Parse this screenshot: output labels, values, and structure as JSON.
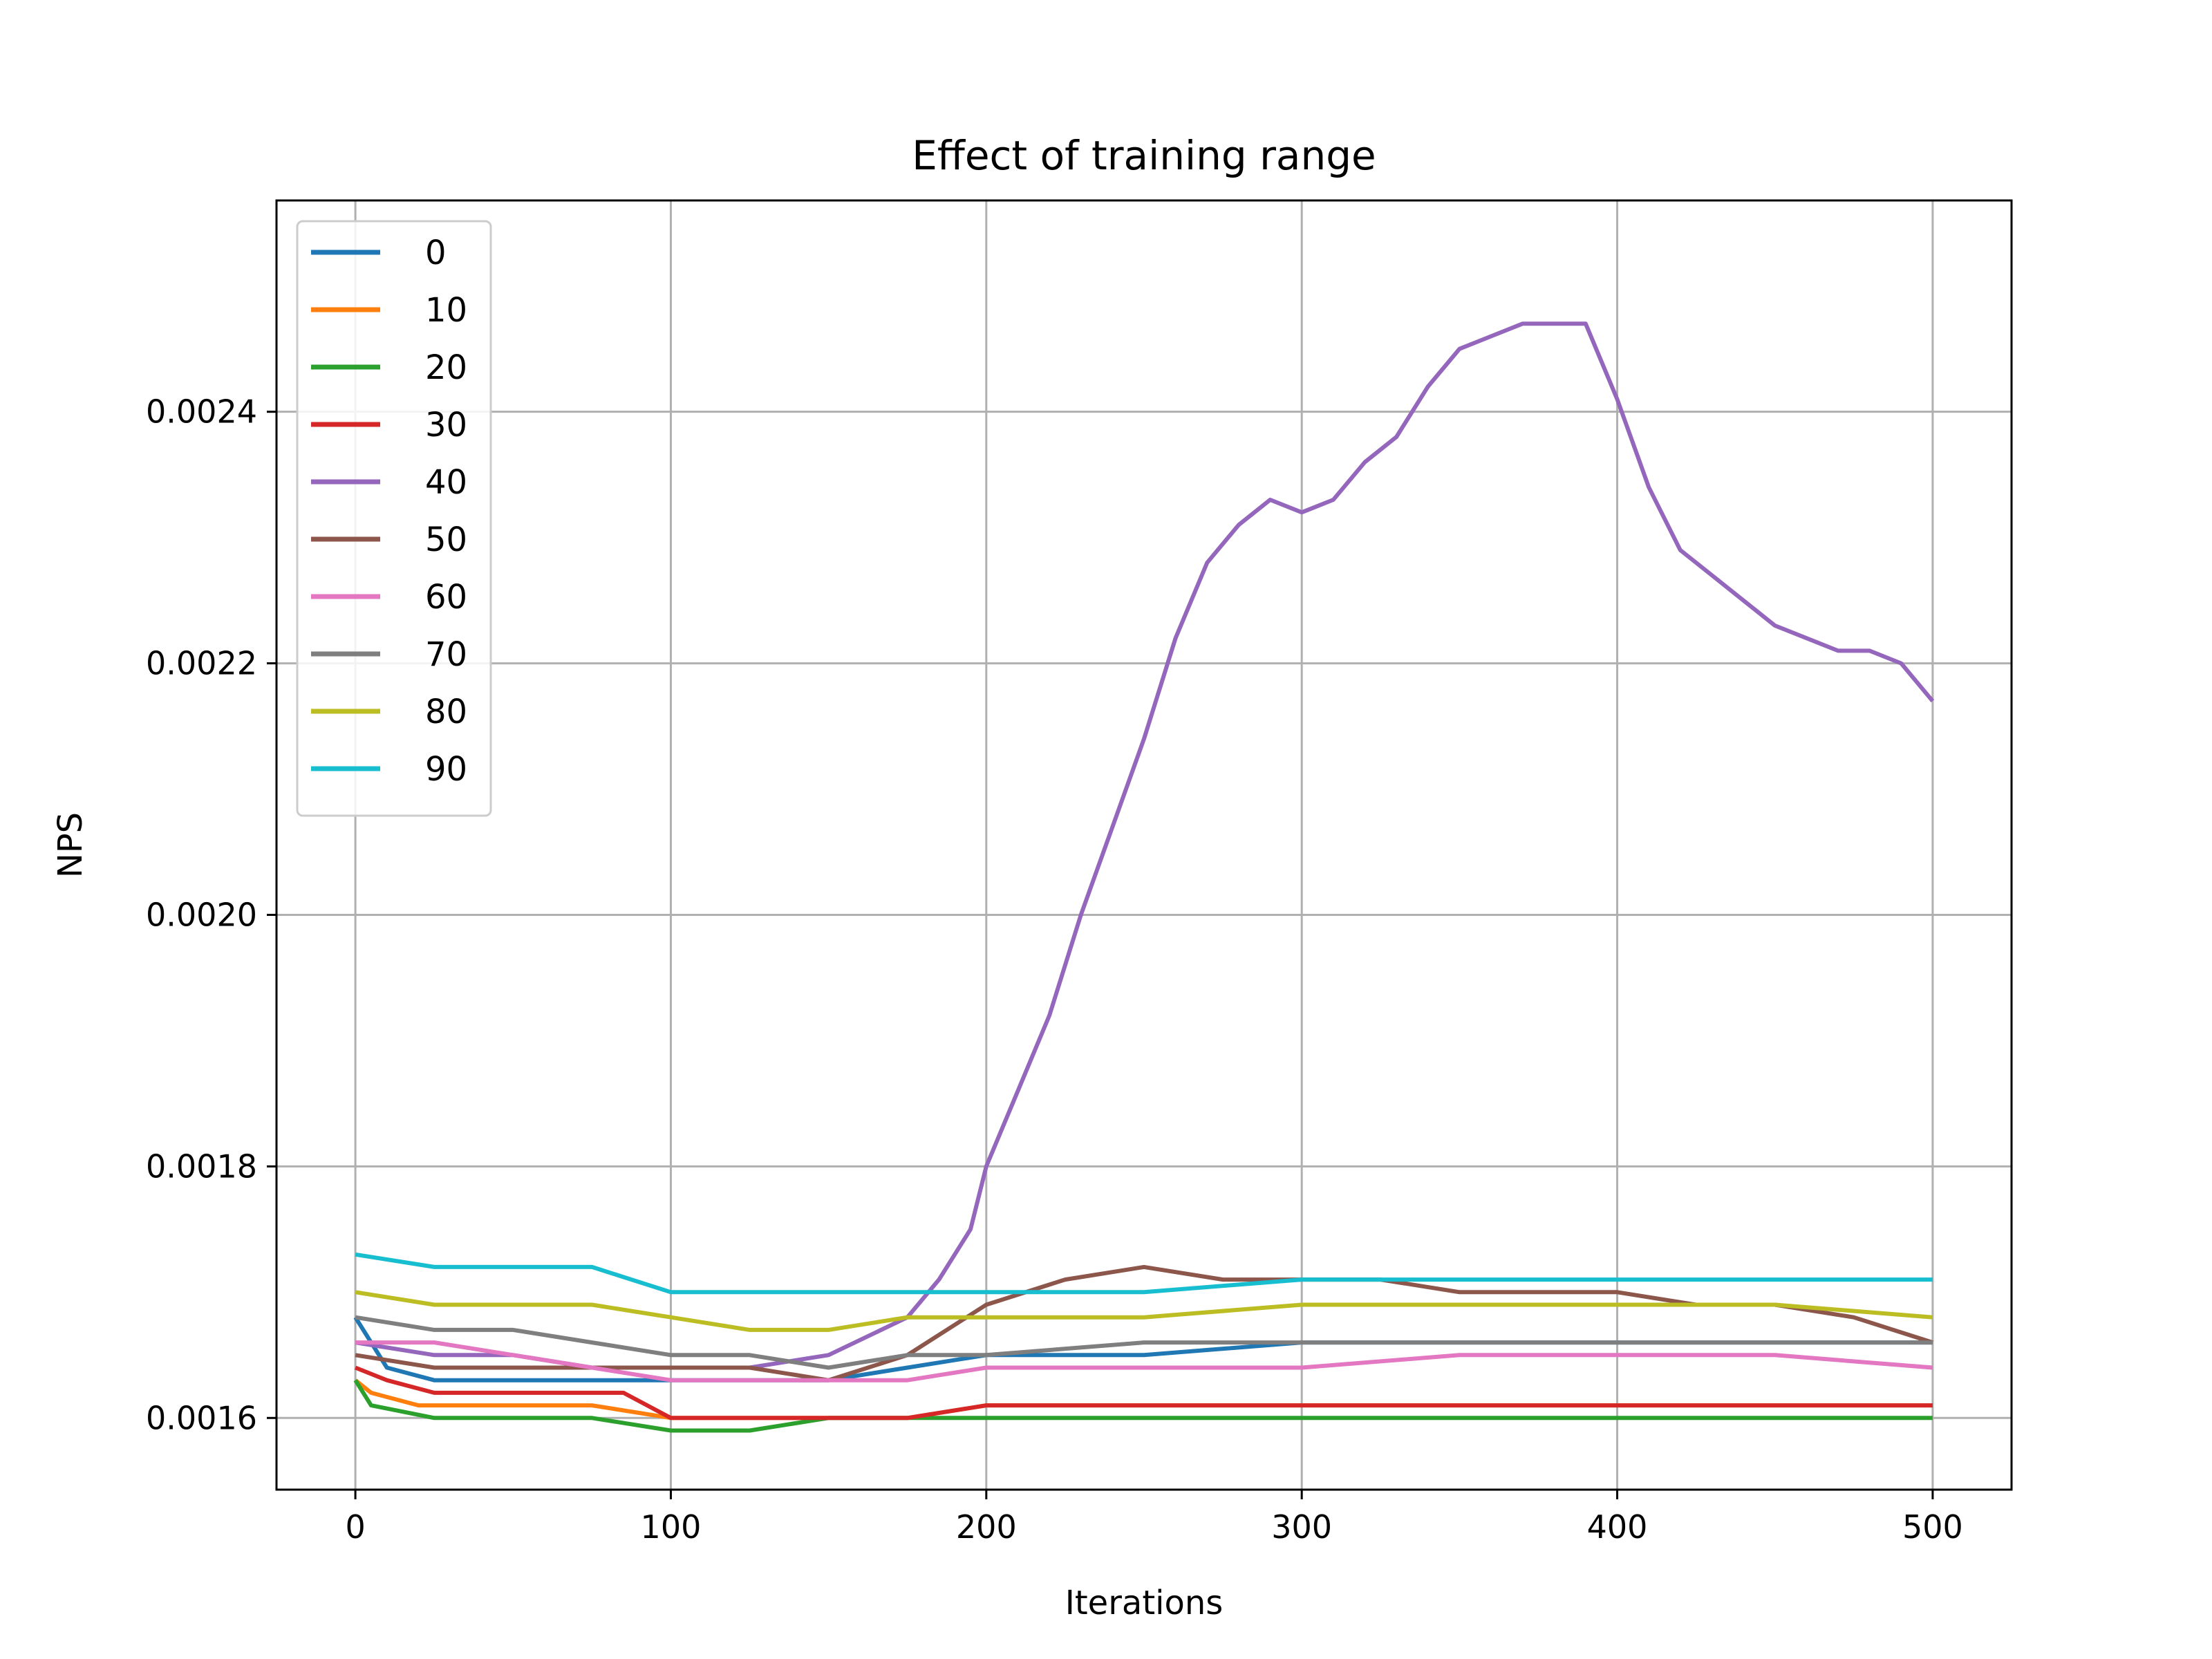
{
  "chart_data": {
    "type": "line",
    "title": "Effect of training range",
    "xlabel": "Iterations",
    "ylabel": "NPS",
    "xlim": [
      -25,
      525
    ],
    "ylim": [
      0.001543,
      0.002568
    ],
    "x_ticks": [
      0,
      100,
      200,
      300,
      400,
      500
    ],
    "x_tick_labels": [
      "0",
      "100",
      "200",
      "300",
      "400",
      "500"
    ],
    "y_ticks": [
      0.0016,
      0.0018,
      0.002,
      0.0022,
      0.0024
    ],
    "y_tick_labels": [
      "0.0016",
      "0.0018",
      "0.0020",
      "0.0022",
      "0.0024"
    ],
    "grid": true,
    "legend_position": "upper-left",
    "series": [
      {
        "name": "0",
        "color": "#1f77b4",
        "x": [
          0,
          10,
          25,
          50,
          75,
          100,
          125,
          150,
          175,
          200,
          250,
          300,
          350,
          400,
          450,
          500
        ],
        "y": [
          0.00168,
          0.00164,
          0.00163,
          0.00163,
          0.00163,
          0.00163,
          0.00163,
          0.00163,
          0.00164,
          0.00165,
          0.00165,
          0.00166,
          0.00166,
          0.00166,
          0.00166,
          0.00166
        ]
      },
      {
        "name": "10",
        "color": "#ff7f0e",
        "x": [
          0,
          5,
          20,
          50,
          75,
          100,
          125,
          150,
          175,
          200,
          250,
          300,
          350,
          400,
          450,
          500
        ],
        "y": [
          0.00163,
          0.00162,
          0.00161,
          0.00161,
          0.00161,
          0.0016,
          0.0016,
          0.0016,
          0.0016,
          0.00161,
          0.00161,
          0.00161,
          0.00161,
          0.00161,
          0.00161,
          0.00161
        ]
      },
      {
        "name": "20",
        "color": "#2ca02c",
        "x": [
          0,
          5,
          25,
          50,
          75,
          100,
          125,
          150,
          175,
          200,
          250,
          300,
          350,
          400,
          450,
          500
        ],
        "y": [
          0.00163,
          0.00161,
          0.0016,
          0.0016,
          0.0016,
          0.00159,
          0.00159,
          0.0016,
          0.0016,
          0.0016,
          0.0016,
          0.0016,
          0.0016,
          0.0016,
          0.0016,
          0.0016
        ]
      },
      {
        "name": "30",
        "color": "#d62728",
        "x": [
          0,
          10,
          25,
          50,
          75,
          85,
          100,
          125,
          150,
          175,
          200,
          250,
          300,
          350,
          400,
          450,
          500
        ],
        "y": [
          0.00164,
          0.00163,
          0.00162,
          0.00162,
          0.00162,
          0.00162,
          0.0016,
          0.0016,
          0.0016,
          0.0016,
          0.00161,
          0.00161,
          0.00161,
          0.00161,
          0.00161,
          0.00161,
          0.00161
        ]
      },
      {
        "name": "40",
        "color": "#9467bd",
        "x": [
          0,
          25,
          50,
          75,
          100,
          125,
          150,
          175,
          185,
          195,
          200,
          210,
          220,
          230,
          240,
          250,
          260,
          270,
          280,
          290,
          300,
          310,
          320,
          330,
          340,
          350,
          360,
          370,
          380,
          390,
          400,
          410,
          420,
          430,
          440,
          450,
          460,
          470,
          480,
          490,
          500
        ],
        "y": [
          0.00166,
          0.00165,
          0.00165,
          0.00164,
          0.00164,
          0.00164,
          0.00165,
          0.00168,
          0.00171,
          0.00175,
          0.0018,
          0.00186,
          0.00192,
          0.002,
          0.00207,
          0.00214,
          0.00222,
          0.00228,
          0.00231,
          0.00233,
          0.00232,
          0.00233,
          0.00236,
          0.00238,
          0.00242,
          0.00245,
          0.00246,
          0.00247,
          0.00247,
          0.00247,
          0.00241,
          0.00234,
          0.00229,
          0.00227,
          0.00225,
          0.00223,
          0.00222,
          0.00221,
          0.00221,
          0.0022,
          0.00217
        ]
      },
      {
        "name": "50",
        "color": "#8c564b",
        "x": [
          0,
          25,
          50,
          75,
          100,
          125,
          150,
          175,
          200,
          225,
          250,
          275,
          300,
          325,
          350,
          375,
          400,
          425,
          450,
          475,
          500
        ],
        "y": [
          0.00165,
          0.00164,
          0.00164,
          0.00164,
          0.00164,
          0.00164,
          0.00163,
          0.00165,
          0.00169,
          0.00171,
          0.00172,
          0.00171,
          0.00171,
          0.00171,
          0.0017,
          0.0017,
          0.0017,
          0.00169,
          0.00169,
          0.00168,
          0.00166
        ]
      },
      {
        "name": "60",
        "color": "#e377c2",
        "x": [
          0,
          25,
          50,
          75,
          100,
          125,
          150,
          175,
          200,
          250,
          300,
          350,
          400,
          450,
          500
        ],
        "y": [
          0.00166,
          0.00166,
          0.00165,
          0.00164,
          0.00163,
          0.00163,
          0.00163,
          0.00163,
          0.00164,
          0.00164,
          0.00164,
          0.00165,
          0.00165,
          0.00165,
          0.00164
        ]
      },
      {
        "name": "70",
        "color": "#7f7f7f",
        "x": [
          0,
          25,
          50,
          75,
          100,
          125,
          150,
          175,
          200,
          250,
          300,
          350,
          400,
          450,
          500
        ],
        "y": [
          0.00168,
          0.00167,
          0.00167,
          0.00166,
          0.00165,
          0.00165,
          0.00164,
          0.00165,
          0.00165,
          0.00166,
          0.00166,
          0.00166,
          0.00166,
          0.00166,
          0.00166
        ]
      },
      {
        "name": "80",
        "color": "#bcbd22",
        "x": [
          0,
          25,
          50,
          75,
          100,
          125,
          150,
          175,
          200,
          250,
          300,
          350,
          400,
          450,
          500
        ],
        "y": [
          0.0017,
          0.00169,
          0.00169,
          0.00169,
          0.00168,
          0.00167,
          0.00167,
          0.00168,
          0.00168,
          0.00168,
          0.00169,
          0.00169,
          0.00169,
          0.00169,
          0.00168
        ]
      },
      {
        "name": "90",
        "color": "#17becf",
        "x": [
          0,
          25,
          50,
          75,
          100,
          125,
          150,
          175,
          200,
          250,
          300,
          350,
          400,
          450,
          500
        ],
        "y": [
          0.00173,
          0.00172,
          0.00172,
          0.00172,
          0.0017,
          0.0017,
          0.0017,
          0.0017,
          0.0017,
          0.0017,
          0.00171,
          0.00171,
          0.00171,
          0.00171,
          0.00171
        ]
      }
    ]
  }
}
